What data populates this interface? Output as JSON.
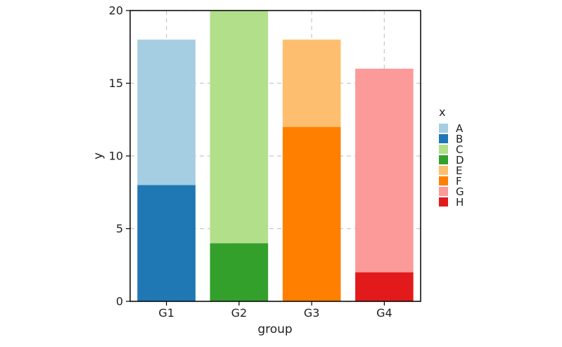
{
  "chart_data": {
    "type": "bar",
    "stacked": true,
    "categories": [
      "G1",
      "G2",
      "G3",
      "G4"
    ],
    "series": [
      {
        "name": "A",
        "color": "#a6cee3",
        "values": [
          10,
          0,
          0,
          0
        ]
      },
      {
        "name": "B",
        "color": "#1f78b4",
        "values": [
          8,
          0,
          0,
          0
        ]
      },
      {
        "name": "C",
        "color": "#b2df8a",
        "values": [
          0,
          16,
          0,
          0
        ]
      },
      {
        "name": "D",
        "color": "#33a02c",
        "values": [
          0,
          4,
          0,
          0
        ]
      },
      {
        "name": "E",
        "color": "#fdbf6f",
        "values": [
          0,
          0,
          6,
          0
        ]
      },
      {
        "name": "F",
        "color": "#ff7f00",
        "values": [
          0,
          0,
          12,
          0
        ]
      },
      {
        "name": "G",
        "color": "#fb9a99",
        "values": [
          0,
          0,
          0,
          14
        ]
      },
      {
        "name": "H",
        "color": "#e31a1c",
        "values": [
          0,
          0,
          0,
          2
        ]
      }
    ],
    "stack_order_bottom_to_top": [
      "B",
      "A",
      "D",
      "C",
      "F",
      "E",
      "H",
      "G"
    ],
    "xlabel": "group",
    "ylabel": "y",
    "ylim": [
      0,
      20
    ],
    "yticks": [
      0,
      5,
      10,
      15,
      20
    ],
    "grid": true,
    "legend": {
      "title": "x",
      "position": "right"
    }
  }
}
